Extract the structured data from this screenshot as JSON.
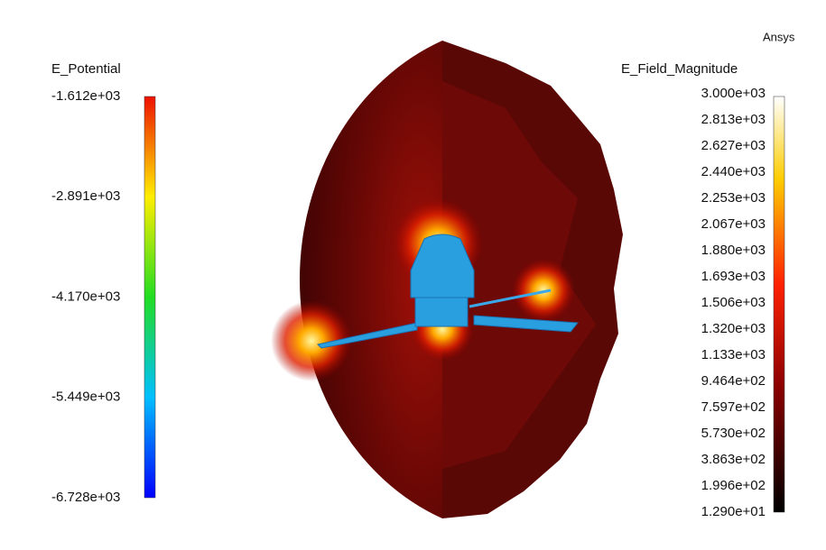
{
  "brand": "Ansys",
  "left_legend": {
    "title": "E_Potential",
    "labels": [
      "-1.612e+03",
      "-2.891e+03",
      "-4.170e+03",
      "-5.449e+03",
      "-6.728e+03"
    ]
  },
  "right_legend": {
    "title": "E_Field_Magnitude",
    "labels": [
      "3.000e+03",
      "2.813e+03",
      "2.627e+03",
      "2.440e+03",
      "2.253e+03",
      "2.067e+03",
      "1.880e+03",
      "1.693e+03",
      "1.506e+03",
      "1.320e+03",
      "1.133e+03",
      "9.464e+02",
      "7.597e+02",
      "5.730e+02",
      "3.863e+02",
      "1.996e+02",
      "1.290e+01"
    ]
  }
}
